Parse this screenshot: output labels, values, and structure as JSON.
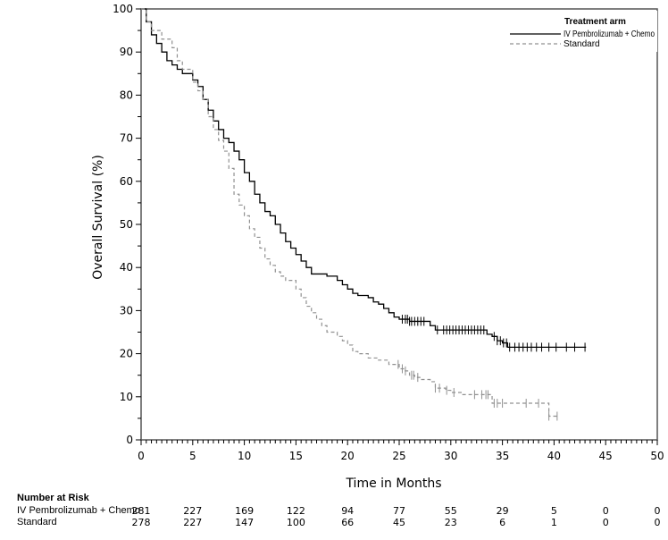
{
  "chart_data": {
    "type": "line",
    "subtype": "kaplan-meier",
    "title": "",
    "xlabel": "Time in Months",
    "ylabel": "Overall Survival (%)",
    "xlim": [
      0,
      50
    ],
    "ylim": [
      0,
      100
    ],
    "x_ticks": [
      0,
      5,
      10,
      15,
      20,
      25,
      30,
      35,
      40,
      45,
      50
    ],
    "y_ticks": [
      0,
      10,
      20,
      30,
      40,
      50,
      60,
      70,
      80,
      90,
      100
    ],
    "x_tick_labels": [
      "0",
      "5",
      "10",
      "15",
      "20",
      "25",
      "30",
      "35",
      "40",
      "45",
      "50"
    ],
    "y_tick_labels": [
      "0",
      "10",
      "20",
      "30",
      "40",
      "50",
      "60",
      "70",
      "80",
      "90",
      "100"
    ],
    "grid": false,
    "legend": {
      "title": "Treatment arm",
      "placement": "top-right",
      "entries": [
        "IV Pembrolizumab + Chemo",
        "Standard"
      ]
    },
    "series": [
      {
        "name": "IV Pembrolizumab + Chemo",
        "style": "solid",
        "color": "#000000",
        "points": [
          [
            0,
            100
          ],
          [
            0.5,
            97
          ],
          [
            1,
            94
          ],
          [
            1.5,
            92
          ],
          [
            2,
            90
          ],
          [
            2.5,
            88
          ],
          [
            3,
            87
          ],
          [
            3.5,
            86
          ],
          [
            4,
            85
          ],
          [
            5,
            83.5
          ],
          [
            5.5,
            82
          ],
          [
            6,
            79
          ],
          [
            6.5,
            76.5
          ],
          [
            7,
            74
          ],
          [
            7.5,
            72
          ],
          [
            8,
            70
          ],
          [
            8.5,
            69
          ],
          [
            9,
            67
          ],
          [
            9.5,
            65
          ],
          [
            10,
            62
          ],
          [
            10.5,
            60
          ],
          [
            11,
            57
          ],
          [
            11.5,
            55
          ],
          [
            12,
            53
          ],
          [
            12.5,
            52
          ],
          [
            13,
            50
          ],
          [
            13.5,
            48
          ],
          [
            14,
            46
          ],
          [
            14.5,
            44.5
          ],
          [
            15,
            43
          ],
          [
            15.5,
            41.5
          ],
          [
            16,
            40
          ],
          [
            16.5,
            38.5
          ],
          [
            17.5,
            38.5
          ],
          [
            18,
            38
          ],
          [
            19,
            37
          ],
          [
            19.5,
            36
          ],
          [
            20,
            35
          ],
          [
            20.5,
            34
          ],
          [
            21,
            33.5
          ],
          [
            22,
            33
          ],
          [
            22.5,
            32
          ],
          [
            23,
            31.5
          ],
          [
            23.5,
            30.5
          ],
          [
            24,
            29.5
          ],
          [
            24.5,
            28.5
          ],
          [
            25,
            28
          ],
          [
            26,
            27.5
          ],
          [
            27.5,
            27.5
          ],
          [
            28,
            26.5
          ],
          [
            28.5,
            25.5
          ],
          [
            32,
            25.5
          ],
          [
            33,
            25.5
          ],
          [
            33.5,
            24.5
          ],
          [
            34,
            24
          ],
          [
            34.5,
            23
          ],
          [
            35,
            22.5
          ],
          [
            35.5,
            21.5
          ],
          [
            43.1,
            21.5
          ]
        ],
        "censor_times": [
          25.3,
          25.6,
          25.8,
          26.0,
          26.2,
          26.5,
          26.8,
          27.1,
          27.4,
          28.7,
          29.3,
          29.6,
          29.9,
          30.2,
          30.5,
          30.8,
          31.1,
          31.4,
          31.7,
          32.0,
          32.3,
          32.6,
          32.9,
          33.2,
          34.2,
          34.5,
          34.8,
          35.1,
          35.4,
          35.7,
          36.2,
          36.6,
          37.0,
          37.4,
          37.8,
          38.3,
          38.8,
          39.5,
          40.2,
          41.2,
          42.0,
          43.0
        ]
      },
      {
        "name": "Standard",
        "style": "dashed",
        "color": "#909090",
        "points": [
          [
            0,
            100
          ],
          [
            0.5,
            97
          ],
          [
            1,
            95
          ],
          [
            2,
            93
          ],
          [
            3,
            91
          ],
          [
            3.5,
            88
          ],
          [
            4,
            86
          ],
          [
            5,
            83
          ],
          [
            5.5,
            81
          ],
          [
            6,
            79
          ],
          [
            6.5,
            75
          ],
          [
            7,
            72
          ],
          [
            7.5,
            69.5
          ],
          [
            8,
            67
          ],
          [
            8.5,
            63
          ],
          [
            9,
            57
          ],
          [
            9.5,
            54.5
          ],
          [
            10,
            52
          ],
          [
            10.5,
            49
          ],
          [
            11,
            47
          ],
          [
            11.5,
            44.5
          ],
          [
            12,
            42
          ],
          [
            12.5,
            40.5
          ],
          [
            13,
            39
          ],
          [
            13.5,
            38
          ],
          [
            14,
            37
          ],
          [
            15,
            35
          ],
          [
            15.5,
            33
          ],
          [
            16,
            31
          ],
          [
            16.5,
            29.5
          ],
          [
            17,
            28
          ],
          [
            17.5,
            26.5
          ],
          [
            18,
            25
          ],
          [
            19,
            24
          ],
          [
            19.5,
            23
          ],
          [
            20,
            22
          ],
          [
            20.5,
            20.5
          ],
          [
            21,
            20
          ],
          [
            22,
            19
          ],
          [
            23,
            18.5
          ],
          [
            24,
            17.5
          ],
          [
            25,
            16.5
          ],
          [
            25.5,
            16
          ],
          [
            26,
            15
          ],
          [
            26.5,
            14.5
          ],
          [
            27,
            14
          ],
          [
            28,
            13.5
          ],
          [
            28.5,
            12
          ],
          [
            29.5,
            11.5
          ],
          [
            30,
            11
          ],
          [
            31,
            10.5
          ],
          [
            33.5,
            10.5
          ],
          [
            34,
            8.5
          ],
          [
            39,
            8.5
          ],
          [
            39.5,
            5.5
          ],
          [
            40.3,
            5.5
          ]
        ],
        "censor_times": [
          24.9,
          25.3,
          25.6,
          26.2,
          26.4,
          26.8,
          28.5,
          28.9,
          29.6,
          30.3,
          32.3,
          33.0,
          33.4,
          33.6,
          34.2,
          34.5,
          35.0,
          37.3,
          38.5,
          39.5,
          40.3
        ]
      }
    ],
    "risk_table": {
      "header": "Number at Risk",
      "times": [
        0,
        5,
        10,
        15,
        20,
        25,
        30,
        35,
        40,
        45,
        50
      ],
      "rows": [
        {
          "label": "IV Pembrolizumab + Chemo",
          "values": [
            "281",
            "227",
            "169",
            "122",
            "94",
            "77",
            "55",
            "29",
            "5",
            "0",
            "0"
          ]
        },
        {
          "label": "Standard",
          "values": [
            "278",
            "227",
            "147",
            "100",
            "66",
            "45",
            "23",
            "6",
            "1",
            "0",
            "0"
          ]
        }
      ]
    }
  }
}
